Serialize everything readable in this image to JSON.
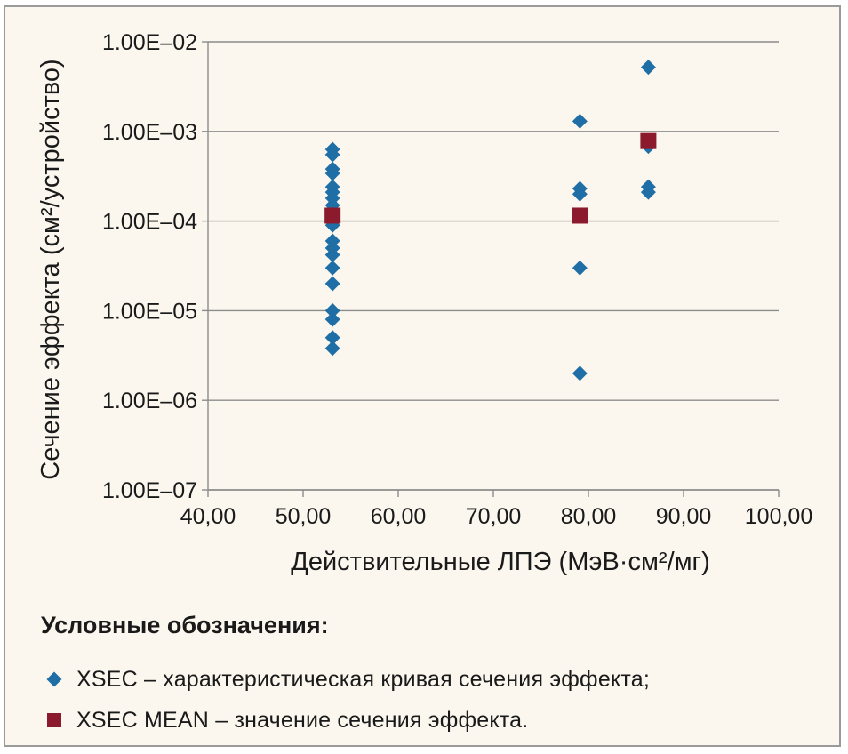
{
  "chart_data": {
    "type": "scatter",
    "xlabel": "Действительные ЛПЭ (МэВ·см²/мг)",
    "ylabel": "Сечение эффекта (см²/устройство)",
    "xlim": [
      40,
      100
    ],
    "ylim": [
      1e-07,
      0.01
    ],
    "yscale": "log",
    "grid": "horizontal",
    "x_ticks": [
      "40,00",
      "50,00",
      "60,00",
      "70,00",
      "80,00",
      "90,00",
      "100,00"
    ],
    "y_ticks": [
      "1.00E–07",
      "1.00E–06",
      "1.00E–05",
      "1.00E–04",
      "1.00E–03",
      "1.00E–02"
    ],
    "series": [
      {
        "name": "XSEC",
        "marker": "diamond",
        "color": "#1f6fa6",
        "points": [
          [
            53.1,
            0.00063
          ],
          [
            53.1,
            0.00055
          ],
          [
            53.1,
            0.00038
          ],
          [
            53.1,
            0.00034
          ],
          [
            53.1,
            0.00024
          ],
          [
            53.1,
            0.00021
          ],
          [
            53.1,
            0.00018
          ],
          [
            53.1,
            0.00015
          ],
          [
            53.1,
            0.0001
          ],
          [
            53.1,
            9e-05
          ],
          [
            53.1,
            6e-05
          ],
          [
            53.1,
            5e-05
          ],
          [
            53.1,
            4.2e-05
          ],
          [
            53.1,
            3e-05
          ],
          [
            53.1,
            2e-05
          ],
          [
            53.1,
            1e-05
          ],
          [
            53.1,
            8e-06
          ],
          [
            53.1,
            5e-06
          ],
          [
            53.1,
            3.8e-06
          ],
          [
            79.1,
            0.0013
          ],
          [
            79.1,
            0.00023
          ],
          [
            79.1,
            0.0002
          ],
          [
            79.1,
            3e-05
          ],
          [
            79.1,
            2e-06
          ],
          [
            86.3,
            0.0052
          ],
          [
            86.3,
            0.00068
          ],
          [
            86.3,
            0.00024
          ],
          [
            86.3,
            0.00021
          ]
        ]
      },
      {
        "name": "XSEC MEAN",
        "marker": "square",
        "color": "#8b1a2c",
        "points": [
          [
            53.1,
            0.000115
          ],
          [
            79.1,
            0.000115
          ],
          [
            86.3,
            0.00078
          ]
        ]
      }
    ]
  },
  "legend": {
    "title": "Условные обозначения:",
    "items": [
      {
        "marker": "diamond",
        "color": "#1f6fa6",
        "label": "XSEC – характеристическая кривая сечения эффекта;"
      },
      {
        "marker": "square",
        "color": "#8b1a2c",
        "label": "XSEC MEAN – значение сечения эффекта."
      }
    ]
  },
  "colors": {
    "background": "#fbf7ee",
    "frame": "#9a9a9a",
    "grid": "#8c8c8c"
  }
}
